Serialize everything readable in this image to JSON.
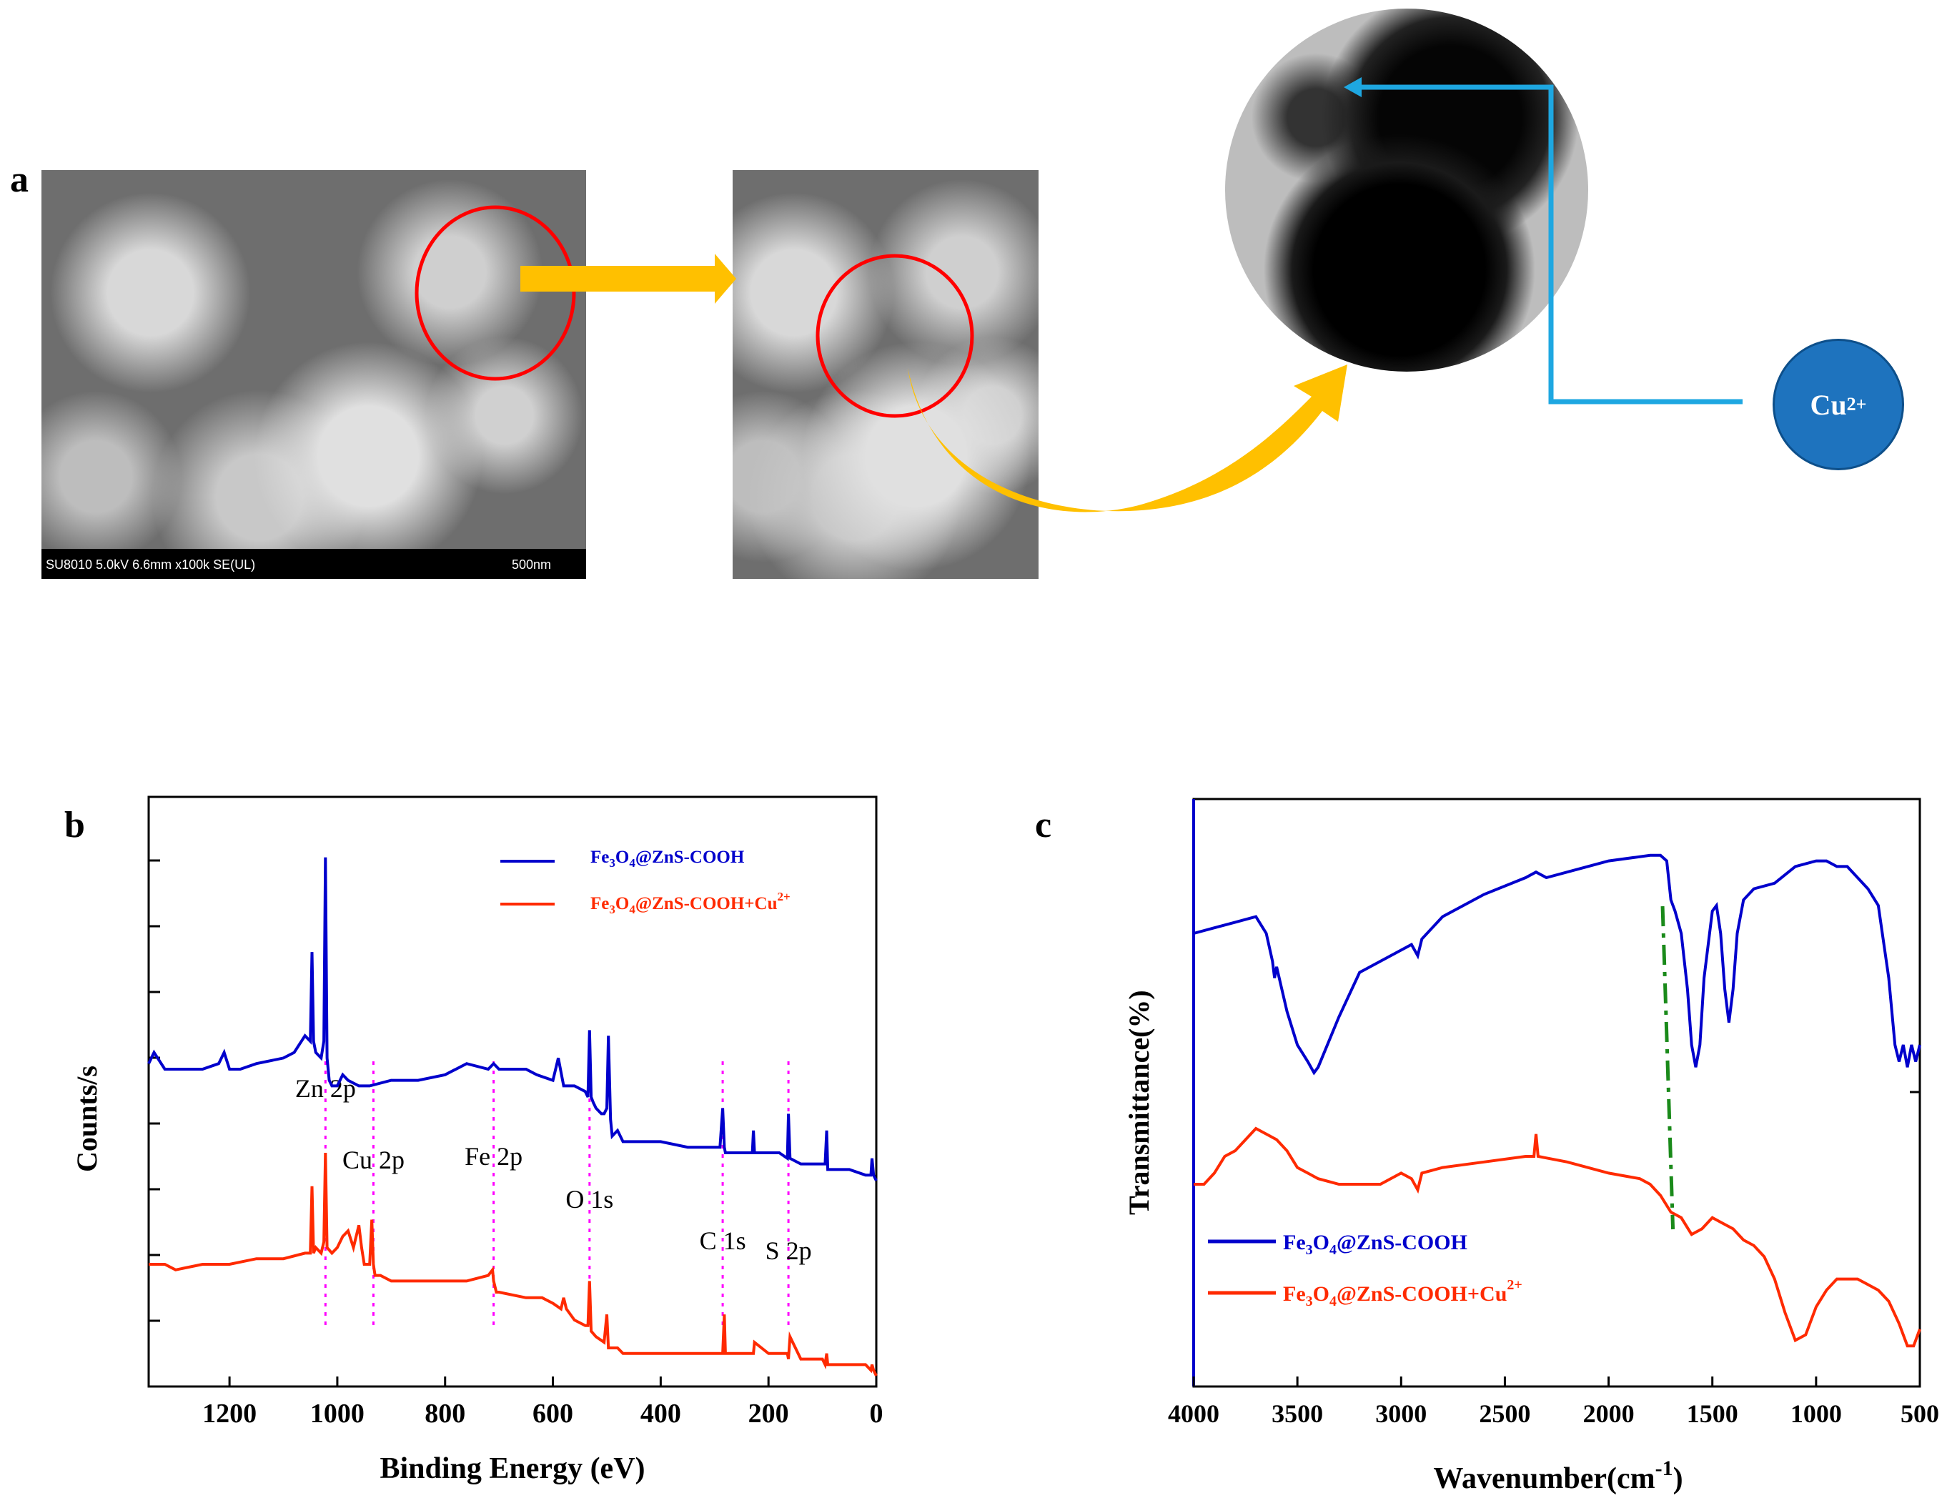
{
  "panel_labels": {
    "a": "a",
    "b": "b",
    "c": "c"
  },
  "panel_a": {
    "sem_info_left": "SU8010 5.0kV 6.6mm x100k SE(UL)",
    "sem_scale": "500nm",
    "cu_ion_label": "Cu",
    "cu_ion_charge": "2+"
  },
  "colors": {
    "blue": "#0000cc",
    "red": "#ff2a00",
    "magenta": "#ff00ff",
    "green": "#1a8a1a",
    "arrow": "#ffc000",
    "cyan": "#1ea7e1",
    "cu_fill": "#1e73be"
  },
  "chart_data": [
    {
      "type": "line",
      "panel": "b",
      "title": "",
      "xlabel": "Binding Energy (eV)",
      "ylabel": "Counts/s",
      "xlim": [
        1350,
        0
      ],
      "ylim": [
        0,
        1
      ],
      "xticks": [
        1200,
        1000,
        800,
        600,
        400,
        200,
        0
      ],
      "legend": [
        "Fe3O4@ZnS-COOH",
        "Fe3O4@ZnS-COOH+Cu2+"
      ],
      "series": [
        {
          "name": "Fe3O4@ZnS-COOH",
          "color": "#0000cc",
          "x": [
            1350,
            1340,
            1320,
            1300,
            1250,
            1220,
            1210,
            1200,
            1180,
            1150,
            1100,
            1080,
            1060,
            1050,
            1047,
            1044,
            1040,
            1030,
            1025,
            1022,
            1019,
            1015,
            1010,
            1000,
            990,
            980,
            960,
            940,
            900,
            850,
            800,
            760,
            720,
            710,
            700,
            680,
            650,
            630,
            600,
            590,
            580,
            560,
            540,
            535,
            532,
            529,
            525,
            520,
            510,
            505,
            500,
            497,
            493,
            490,
            480,
            470,
            460,
            450,
            400,
            350,
            300,
            290,
            285,
            282,
            280,
            260,
            230,
            228,
            226,
            200,
            180,
            165,
            163,
            160,
            140,
            120,
            100,
            95,
            92,
            90,
            50,
            20,
            10,
            8,
            5,
            0
          ],
          "y": [
            0.56,
            0.58,
            0.55,
            0.55,
            0.55,
            0.56,
            0.58,
            0.55,
            0.55,
            0.56,
            0.57,
            0.58,
            0.61,
            0.6,
            0.76,
            0.6,
            0.58,
            0.57,
            0.6,
            0.93,
            0.57,
            0.53,
            0.52,
            0.52,
            0.54,
            0.53,
            0.52,
            0.52,
            0.53,
            0.53,
            0.54,
            0.56,
            0.55,
            0.56,
            0.55,
            0.55,
            0.55,
            0.54,
            0.53,
            0.57,
            0.52,
            0.52,
            0.51,
            0.5,
            0.62,
            0.5,
            0.49,
            0.48,
            0.47,
            0.47,
            0.48,
            0.61,
            0.46,
            0.43,
            0.44,
            0.42,
            0.42,
            0.42,
            0.42,
            0.41,
            0.41,
            0.41,
            0.48,
            0.41,
            0.4,
            0.4,
            0.4,
            0.44,
            0.4,
            0.4,
            0.4,
            0.39,
            0.47,
            0.39,
            0.38,
            0.38,
            0.38,
            0.38,
            0.44,
            0.37,
            0.37,
            0.36,
            0.36,
            0.39,
            0.36,
            0.35
          ]
        },
        {
          "name": "Fe3O4@ZnS-COOH+Cu2+",
          "color": "#ff2a00",
          "x": [
            1350,
            1320,
            1300,
            1250,
            1200,
            1150,
            1100,
            1060,
            1050,
            1047,
            1044,
            1040,
            1030,
            1025,
            1022,
            1019,
            1010,
            1000,
            990,
            980,
            970,
            960,
            955,
            950,
            940,
            936,
            933,
            930,
            920,
            900,
            850,
            800,
            760,
            720,
            712,
            710,
            705,
            700,
            650,
            620,
            600,
            585,
            580,
            575,
            560,
            540,
            535,
            532,
            529,
            520,
            505,
            500,
            497,
            490,
            480,
            470,
            450,
            400,
            350,
            300,
            290,
            285,
            282,
            280,
            260,
            230,
            228,
            226,
            200,
            180,
            165,
            163,
            160,
            140,
            100,
            95,
            92,
            90,
            50,
            20,
            10,
            8,
            5,
            0
          ],
          "y": [
            0.2,
            0.2,
            0.19,
            0.2,
            0.2,
            0.21,
            0.21,
            0.22,
            0.22,
            0.34,
            0.22,
            0.23,
            0.22,
            0.24,
            0.4,
            0.23,
            0.22,
            0.23,
            0.25,
            0.26,
            0.23,
            0.27,
            0.23,
            0.2,
            0.2,
            0.28,
            0.2,
            0.18,
            0.18,
            0.17,
            0.17,
            0.17,
            0.17,
            0.18,
            0.19,
            0.17,
            0.15,
            0.15,
            0.14,
            0.14,
            0.13,
            0.12,
            0.14,
            0.12,
            0.1,
            0.09,
            0.09,
            0.17,
            0.08,
            0.07,
            0.06,
            0.11,
            0.05,
            0.05,
            0.05,
            0.04,
            0.04,
            0.04,
            0.04,
            0.04,
            0.04,
            0.04,
            0.11,
            0.04,
            0.04,
            0.04,
            0.04,
            0.06,
            0.04,
            0.04,
            0.04,
            0.03,
            0.07,
            0.03,
            0.03,
            0.02,
            0.04,
            0.02,
            0.02,
            0.02,
            0.01,
            0.02,
            0.01,
            0.0
          ]
        }
      ],
      "annotations": [
        {
          "label": "Zn 2p",
          "x": 1022
        },
        {
          "label": "Cu 2p",
          "x": 933
        },
        {
          "label": "Fe 2p",
          "x": 710
        },
        {
          "label": "O 1s",
          "x": 532
        },
        {
          "label": "C 1s",
          "x": 285
        },
        {
          "label": "S 2p",
          "x": 163
        }
      ]
    },
    {
      "type": "line",
      "panel": "c",
      "title": "",
      "xlabel_main": "Wavenumber(cm",
      "xlabel_sup": "-1",
      "xlabel_end": ")",
      "ylabel": "Transmittance(%)",
      "xlim": [
        4000,
        500
      ],
      "ylim": [
        0,
        1
      ],
      "xticks": [
        4000,
        3500,
        3000,
        2500,
        2000,
        1500,
        1000,
        500
      ],
      "legend": [
        "Fe3O4@ZnS-COOH",
        "Fe3O4@ZnS-COOH+Cu2+"
      ],
      "marker_line": {
        "x_top": 1740,
        "x_bottom": 1690
      },
      "series": [
        {
          "name": "Fe3O4@ZnS-COOH",
          "color": "#0000cc",
          "x": [
            4000,
            3900,
            3800,
            3700,
            3650,
            3620,
            3610,
            3600,
            3550,
            3500,
            3450,
            3420,
            3400,
            3300,
            3200,
            3000,
            2950,
            2920,
            2900,
            2800,
            2600,
            2400,
            2350,
            2300,
            2100,
            2000,
            1800,
            1750,
            1720,
            1700,
            1680,
            1650,
            1620,
            1600,
            1580,
            1560,
            1540,
            1500,
            1480,
            1460,
            1440,
            1420,
            1400,
            1380,
            1350,
            1300,
            1200,
            1100,
            1000,
            950,
            900,
            850,
            800,
            750,
            700,
            650,
            620,
            600,
            580,
            560,
            540,
            520,
            500
          ],
          "y": [
            0.8,
            0.81,
            0.82,
            0.83,
            0.8,
            0.75,
            0.72,
            0.74,
            0.66,
            0.6,
            0.57,
            0.55,
            0.56,
            0.65,
            0.73,
            0.77,
            0.78,
            0.76,
            0.79,
            0.83,
            0.87,
            0.9,
            0.91,
            0.9,
            0.92,
            0.93,
            0.94,
            0.94,
            0.93,
            0.86,
            0.84,
            0.8,
            0.7,
            0.6,
            0.56,
            0.6,
            0.72,
            0.84,
            0.85,
            0.8,
            0.7,
            0.64,
            0.7,
            0.8,
            0.86,
            0.88,
            0.89,
            0.92,
            0.93,
            0.93,
            0.92,
            0.92,
            0.9,
            0.88,
            0.85,
            0.72,
            0.6,
            0.57,
            0.6,
            0.56,
            0.6,
            0.57,
            0.6
          ]
        },
        {
          "name": "Fe3O4@ZnS-COOH+Cu2+",
          "color": "#ff2a00",
          "x": [
            4000,
            3950,
            3900,
            3850,
            3800,
            3750,
            3700,
            3650,
            3600,
            3550,
            3500,
            3450,
            3400,
            3300,
            3200,
            3100,
            3000,
            2950,
            2920,
            2900,
            2800,
            2600,
            2400,
            2360,
            2350,
            2340,
            2200,
            2000,
            1850,
            1800,
            1750,
            1700,
            1650,
            1600,
            1550,
            1500,
            1450,
            1400,
            1350,
            1300,
            1250,
            1200,
            1150,
            1100,
            1050,
            1000,
            950,
            900,
            850,
            800,
            750,
            700,
            650,
            600,
            560,
            530,
            500
          ],
          "y": [
            0.35,
            0.35,
            0.37,
            0.4,
            0.41,
            0.43,
            0.45,
            0.44,
            0.43,
            0.41,
            0.38,
            0.37,
            0.36,
            0.35,
            0.35,
            0.35,
            0.37,
            0.36,
            0.34,
            0.37,
            0.38,
            0.39,
            0.4,
            0.4,
            0.44,
            0.4,
            0.39,
            0.37,
            0.36,
            0.35,
            0.33,
            0.3,
            0.29,
            0.26,
            0.27,
            0.29,
            0.28,
            0.27,
            0.25,
            0.24,
            0.22,
            0.18,
            0.12,
            0.07,
            0.08,
            0.13,
            0.16,
            0.18,
            0.18,
            0.18,
            0.17,
            0.16,
            0.14,
            0.1,
            0.06,
            0.06,
            0.09
          ]
        }
      ]
    }
  ]
}
